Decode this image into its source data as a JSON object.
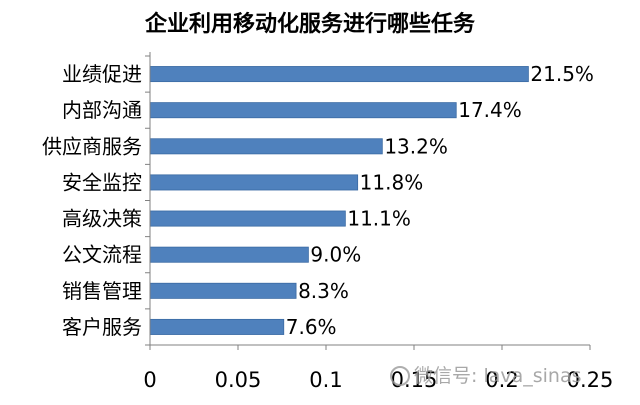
{
  "chart_data": {
    "type": "bar",
    "orientation": "horizontal",
    "title": "企业利用移动化服务进行哪些任务",
    "categories": [
      "业绩促进",
      "内部沟通",
      "供应商服务",
      "安全监控",
      "高级决策",
      "公文流程",
      "销售管理",
      "客户服务"
    ],
    "values": [
      0.215,
      0.174,
      0.132,
      0.118,
      0.111,
      0.09,
      0.083,
      0.076
    ],
    "value_labels": [
      "21.5%",
      "17.4%",
      "13.2%",
      "11.8%",
      "11.1%",
      "9.0%",
      "8.3%",
      "7.6%"
    ],
    "xlim": [
      0,
      0.25
    ],
    "x_ticks": [
      "0",
      "0.05",
      "0.1",
      "0.15",
      "0.2",
      "0.25"
    ],
    "xlabel": "",
    "ylabel": "",
    "grid": false,
    "bar_color": "#4F81BD"
  },
  "watermark": "微信号: lava_sinas"
}
